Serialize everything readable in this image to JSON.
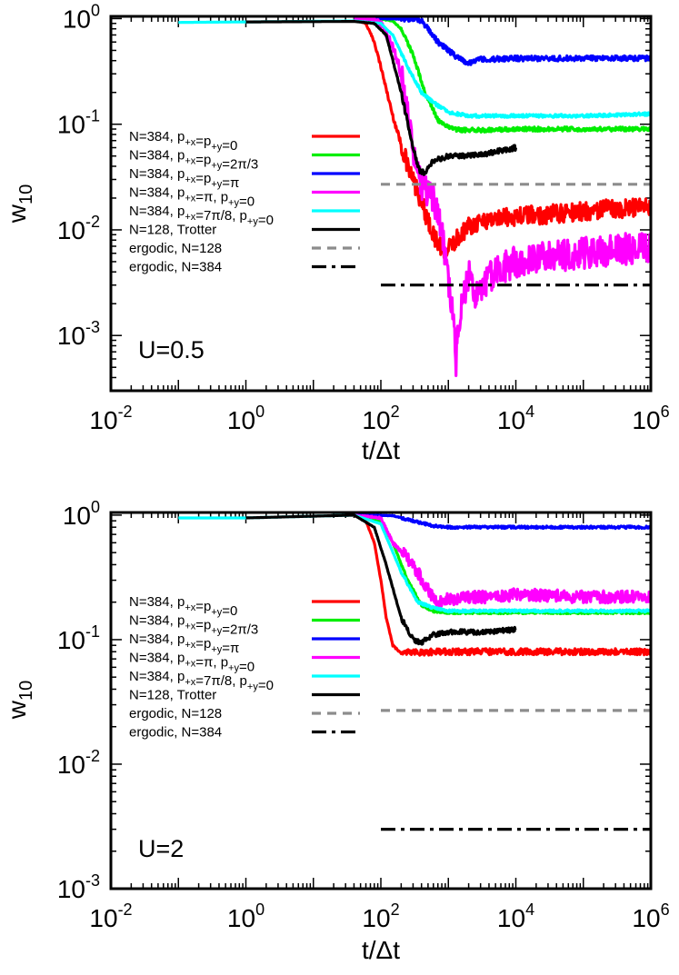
{
  "chart_data": [
    {
      "type": "line",
      "panel": "top",
      "xlabel": "t/Δt",
      "ylabel": "w10",
      "xscale": "log",
      "yscale": "log",
      "xlim": [
        0.01,
        1000000
      ],
      "ylim": [
        0.0003,
        1.05
      ],
      "xticks": [
        0.01,
        1,
        100,
        10000,
        1000000
      ],
      "yticks": [
        0.001,
        0.01,
        0.1,
        1
      ],
      "annotation": "U=0.5",
      "legend_position": "left-middle",
      "series": [
        {
          "key": "s1",
          "name": "N=384, p+x=p+y=0",
          "color": "#ff0000",
          "dash": "solid",
          "noise": 0.18,
          "points": [
            [
              40,
              0.99
            ],
            [
              60,
              0.9
            ],
            [
              80,
              0.6
            ],
            [
              100,
              0.35
            ],
            [
              150,
              0.12
            ],
            [
              250,
              0.04
            ],
            [
              400,
              0.018
            ],
            [
              600,
              0.009
            ],
            [
              800,
              0.0065
            ],
            [
              1100,
              0.007
            ],
            [
              1500,
              0.009
            ],
            [
              2000,
              0.011
            ],
            [
              3000,
              0.012
            ],
            [
              5000,
              0.013
            ],
            [
              10000,
              0.0135
            ],
            [
              30000,
              0.014
            ],
            [
              100000,
              0.015
            ],
            [
              300000,
              0.016
            ],
            [
              1000000,
              0.016
            ]
          ]
        },
        {
          "key": "s2",
          "name": "N=384, p+x=p+y=2π/3",
          "color": "#00ee00",
          "dash": "solid",
          "noise": 0.04,
          "points": [
            [
              40,
              1
            ],
            [
              100,
              0.99
            ],
            [
              150,
              0.95
            ],
            [
              200,
              0.8
            ],
            [
              300,
              0.45
            ],
            [
              450,
              0.2
            ],
            [
              700,
              0.11
            ],
            [
              1000,
              0.093
            ],
            [
              1500,
              0.088
            ],
            [
              3000,
              0.088
            ],
            [
              10000,
              0.09
            ],
            [
              100000,
              0.09
            ],
            [
              1000000,
              0.09
            ]
          ]
        },
        {
          "key": "s3",
          "name": "N=384, p+x=p+y=π",
          "color": "#0000ff",
          "dash": "solid",
          "noise": 0.05,
          "points": [
            [
              40,
              1
            ],
            [
              200,
              1
            ],
            [
              330,
              0.99
            ],
            [
              400,
              0.95
            ],
            [
              500,
              0.8
            ],
            [
              700,
              0.6
            ],
            [
              1000,
              0.5
            ],
            [
              1500,
              0.41
            ],
            [
              2000,
              0.38
            ],
            [
              3000,
              0.41
            ],
            [
              10000,
              0.42
            ],
            [
              100000,
              0.42
            ],
            [
              1000000,
              0.42
            ]
          ]
        },
        {
          "key": "s4",
          "name": "N=384, p+x=π, p+y=0",
          "color": "#ff00ff",
          "dash": "solid",
          "noise": 0.3,
          "points": [
            [
              40,
              1
            ],
            [
              80,
              0.97
            ],
            [
              100,
              0.9
            ],
            [
              150,
              0.55
            ],
            [
              200,
              0.3
            ],
            [
              250,
              0.12
            ],
            [
              300,
              0.05
            ],
            [
              400,
              0.025
            ],
            [
              600,
              0.02
            ],
            [
              800,
              0.01
            ],
            [
              1000,
              0.003
            ],
            [
              1200,
              0.0013
            ],
            [
              1300,
              0.00055
            ],
            [
              1400,
              0.0013
            ],
            [
              1600,
              0.002
            ],
            [
              2000,
              0.004
            ],
            [
              2500,
              0.0025
            ],
            [
              3000,
              0.003
            ],
            [
              5000,
              0.004
            ],
            [
              10000,
              0.005
            ],
            [
              30000,
              0.0055
            ],
            [
              100000,
              0.006
            ],
            [
              1000000,
              0.007
            ]
          ]
        },
        {
          "key": "s5",
          "name": "N=384, p+x=7π/8, p+y=0",
          "color": "#00ffff",
          "dash": "solid",
          "noise": 0.03,
          "points": [
            [
              0.1,
              0.92
            ],
            [
              1,
              0.93
            ],
            [
              40,
              0.95
            ],
            [
              100,
              0.9
            ],
            [
              150,
              0.7
            ],
            [
              250,
              0.35
            ],
            [
              400,
              0.2
            ],
            [
              600,
              0.16
            ],
            [
              1000,
              0.13
            ],
            [
              2000,
              0.12
            ],
            [
              10000,
              0.12
            ],
            [
              100000,
              0.12
            ],
            [
              1000000,
              0.125
            ]
          ]
        },
        {
          "key": "s6",
          "name": "N=128, Trotter",
          "color": "#000000",
          "dash": "solid",
          "noise": 0.05,
          "points": [
            [
              1,
              0.93
            ],
            [
              40,
              0.94
            ],
            [
              80,
              0.9
            ],
            [
              120,
              0.7
            ],
            [
              200,
              0.2
            ],
            [
              300,
              0.06
            ],
            [
              380,
              0.035
            ],
            [
              450,
              0.035
            ],
            [
              600,
              0.045
            ],
            [
              1000,
              0.05
            ],
            [
              2000,
              0.05
            ],
            [
              4000,
              0.053
            ],
            [
              10000,
              0.06
            ]
          ]
        },
        {
          "key": "s7",
          "name": "ergodic, N=128",
          "color": "#8c8c8c",
          "dash": "dashed",
          "noise": 0,
          "points": [
            [
              100,
              0.027
            ],
            [
              1000000,
              0.027
            ]
          ]
        },
        {
          "key": "s8",
          "name": "ergodic, N=384",
          "color": "#000000",
          "dash": "dashdot",
          "noise": 0,
          "points": [
            [
              100,
              0.003
            ],
            [
              1000000,
              0.003
            ]
          ]
        }
      ]
    },
    {
      "type": "line",
      "panel": "bottom",
      "xlabel": "t/Δt",
      "ylabel": "w10",
      "xscale": "log",
      "yscale": "log",
      "xlim": [
        0.01,
        1000000
      ],
      "ylim": [
        0.001,
        1.05
      ],
      "xticks": [
        0.01,
        1,
        100,
        10000,
        1000000
      ],
      "yticks": [
        0.001,
        0.01,
        0.1,
        1
      ],
      "annotation": "U=2",
      "legend_position": "left-middle",
      "series": [
        {
          "key": "s1",
          "name": "N=384, p+x=p+y=0",
          "color": "#ff0000",
          "dash": "solid",
          "noise": 0.05,
          "points": [
            [
              40,
              1
            ],
            [
              60,
              0.9
            ],
            [
              80,
              0.6
            ],
            [
              100,
              0.3
            ],
            [
              120,
              0.15
            ],
            [
              150,
              0.09
            ],
            [
              200,
              0.078
            ],
            [
              300,
              0.079
            ],
            [
              1000,
              0.08
            ],
            [
              10000,
              0.08
            ],
            [
              100000,
              0.08
            ],
            [
              1000000,
              0.08
            ]
          ]
        },
        {
          "key": "s2",
          "name": "N=384, p+x=p+y=2π/3",
          "color": "#00ee00",
          "dash": "solid",
          "noise": 0.02,
          "points": [
            [
              40,
              1
            ],
            [
              100,
              0.9
            ],
            [
              150,
              0.6
            ],
            [
              250,
              0.3
            ],
            [
              400,
              0.19
            ],
            [
              600,
              0.17
            ],
            [
              1000,
              0.165
            ],
            [
              10000,
              0.165
            ],
            [
              1000000,
              0.165
            ]
          ]
        },
        {
          "key": "s3",
          "name": "N=384, p+x=p+y=π",
          "color": "#0000ff",
          "dash": "solid",
          "noise": 0.02,
          "points": [
            [
              40,
              1
            ],
            [
              150,
              0.99
            ],
            [
              300,
              0.9
            ],
            [
              600,
              0.82
            ],
            [
              1000,
              0.8
            ],
            [
              10000,
              0.8
            ],
            [
              1000000,
              0.8
            ]
          ]
        },
        {
          "key": "s4",
          "name": "N=384, p+x=π, p+y=0",
          "color": "#ff00ff",
          "dash": "solid",
          "noise": 0.1,
          "points": [
            [
              40,
              1
            ],
            [
              100,
              0.95
            ],
            [
              150,
              0.6
            ],
            [
              250,
              0.45
            ],
            [
              350,
              0.35
            ],
            [
              500,
              0.25
            ],
            [
              700,
              0.2
            ],
            [
              1000,
              0.21
            ],
            [
              2000,
              0.22
            ],
            [
              5000,
              0.22
            ],
            [
              10000,
              0.23
            ],
            [
              100000,
              0.22
            ],
            [
              1000000,
              0.22
            ]
          ]
        },
        {
          "key": "s5",
          "name": "N=384, p+x=7π/8, p+y=0",
          "color": "#00ffff",
          "dash": "solid",
          "noise": 0.02,
          "points": [
            [
              0.1,
              0.95
            ],
            [
              1,
              0.95
            ],
            [
              40,
              1
            ],
            [
              100,
              0.85
            ],
            [
              200,
              0.35
            ],
            [
              350,
              0.2
            ],
            [
              600,
              0.18
            ],
            [
              1000,
              0.17
            ],
            [
              10000,
              0.17
            ],
            [
              1000000,
              0.17
            ]
          ]
        },
        {
          "key": "s6",
          "name": "N=128, Trotter",
          "color": "#000000",
          "dash": "solid",
          "noise": 0.04,
          "points": [
            [
              1,
              0.95
            ],
            [
              40,
              1
            ],
            [
              80,
              0.8
            ],
            [
              120,
              0.4
            ],
            [
              200,
              0.15
            ],
            [
              300,
              0.1
            ],
            [
              400,
              0.095
            ],
            [
              600,
              0.11
            ],
            [
              1000,
              0.115
            ],
            [
              3000,
              0.115
            ],
            [
              10000,
              0.12
            ]
          ]
        },
        {
          "key": "s7",
          "name": "ergodic, N=128",
          "color": "#8c8c8c",
          "dash": "dashed",
          "noise": 0,
          "points": [
            [
              100,
              0.027
            ],
            [
              1000000,
              0.027
            ]
          ]
        },
        {
          "key": "s8",
          "name": "ergodic, N=384",
          "color": "#000000",
          "dash": "dashdot",
          "noise": 0,
          "points": [
            [
              100,
              0.003
            ],
            [
              1000000,
              0.003
            ]
          ]
        }
      ]
    }
  ]
}
